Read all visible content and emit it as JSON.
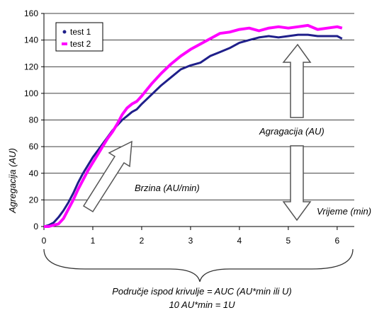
{
  "chart_data": {
    "type": "line",
    "ylabel": "Agregacija (AU)",
    "xlim": [
      0,
      6.35
    ],
    "ylim": [
      0,
      160
    ],
    "xticks": [
      0,
      1,
      2,
      3,
      4,
      5,
      6
    ],
    "yticks": [
      0,
      20,
      40,
      60,
      80,
      100,
      120,
      140,
      160
    ],
    "grid": "horizontal",
    "legend_position": "top-left",
    "series": [
      {
        "name": "test 1",
        "color": "#1f1f8a",
        "x": [
          0,
          0.1,
          0.2,
          0.3,
          0.4,
          0.5,
          0.6,
          0.7,
          0.8,
          0.9,
          1.0,
          1.1,
          1.2,
          1.3,
          1.4,
          1.5,
          1.6,
          1.7,
          1.8,
          1.9,
          2.0,
          2.2,
          2.4,
          2.6,
          2.8,
          3.0,
          3.2,
          3.4,
          3.6,
          3.8,
          4.0,
          4.2,
          4.4,
          4.6,
          4.8,
          5.0,
          5.2,
          5.4,
          5.6,
          5.8,
          6.0,
          6.1
        ],
        "values": [
          0,
          1,
          3,
          7,
          12,
          18,
          25,
          33,
          40,
          46,
          52,
          57,
          62,
          67,
          72,
          76,
          80,
          83,
          86,
          88,
          92,
          99,
          106,
          112,
          118,
          121,
          123,
          128,
          131,
          134,
          138,
          140,
          142,
          143,
          142,
          143,
          144,
          144,
          143,
          143,
          143,
          141
        ]
      },
      {
        "name": "test 2",
        "color": "#ff00ff",
        "x": [
          0,
          0.1,
          0.2,
          0.3,
          0.4,
          0.5,
          0.6,
          0.7,
          0.8,
          0.9,
          1.0,
          1.1,
          1.2,
          1.3,
          1.4,
          1.5,
          1.6,
          1.7,
          1.8,
          1.9,
          2.0,
          2.2,
          2.4,
          2.6,
          2.8,
          3.0,
          3.2,
          3.4,
          3.6,
          3.8,
          4.0,
          4.2,
          4.4,
          4.6,
          4.8,
          5.0,
          5.2,
          5.4,
          5.6,
          5.8,
          6.0,
          6.1
        ],
        "values": [
          0,
          0,
          1,
          2,
          6,
          13,
          20,
          28,
          35,
          42,
          48,
          54,
          60,
          66,
          71,
          77,
          84,
          89,
          92,
          94,
          98,
          107,
          115,
          122,
          128,
          133,
          137,
          141,
          145,
          146,
          148,
          149,
          147,
          149,
          150,
          149,
          150,
          151,
          148,
          149,
          150,
          149
        ]
      }
    ]
  },
  "annotations": {
    "agregacija": "Agragacija (AU)",
    "brzina": "Brzina (AU/min)",
    "vrijeme": "Vrijeme (min)",
    "auc_line1": "Područje ispod krivulje = AUC (AU*min ili U)",
    "auc_line2": "10 AU*min = 1U"
  }
}
